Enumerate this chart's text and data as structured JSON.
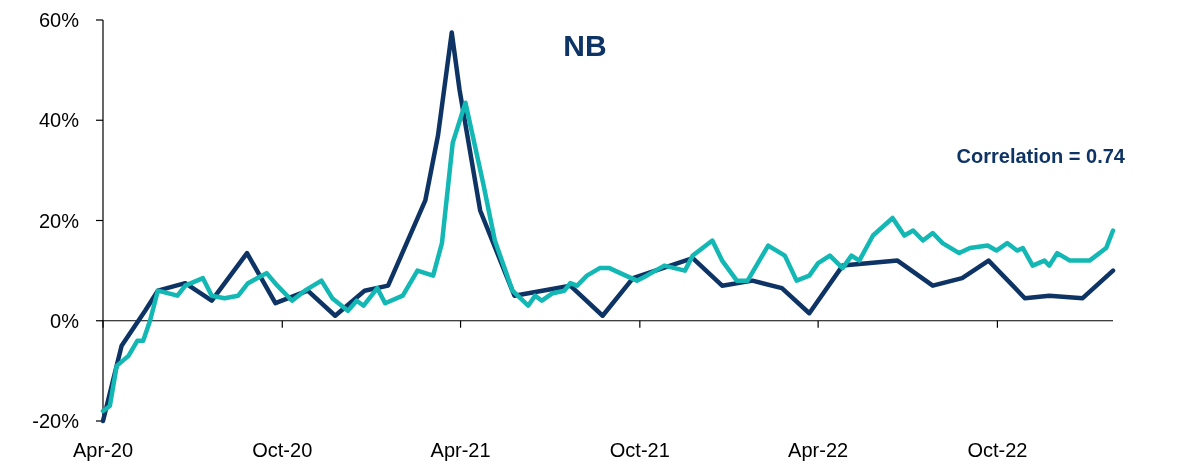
{
  "chart_data": {
    "type": "line",
    "title": "NB",
    "annotations": [
      "Correlation = 0.74"
    ],
    "xlim": [
      "2020-04-01",
      "2023-01-27"
    ],
    "xticks": [
      {
        "value": "2020-04-01",
        "label": "Apr-20"
      },
      {
        "value": "2020-10-01",
        "label": "Oct-20"
      },
      {
        "value": "2021-04-01",
        "label": "Apr-21"
      },
      {
        "value": "2021-10-01",
        "label": "Oct-21"
      },
      {
        "value": "2022-04-01",
        "label": "Apr-22"
      },
      {
        "value": "2022-10-01",
        "label": "Oct-22"
      }
    ],
    "ylim": [
      -20,
      60
    ],
    "yticks": [
      {
        "value": -20,
        "label": "-20%"
      },
      {
        "value": 0,
        "label": "0%"
      },
      {
        "value": 20,
        "label": "20%"
      },
      {
        "value": 40,
        "label": "40%"
      },
      {
        "value": 60,
        "label": "60%"
      }
    ],
    "marker": "none",
    "line_style": "solid",
    "series": [
      {
        "color": "#0e3465",
        "x": [
          "2020-04-01",
          "2020-04-20",
          "2020-05-14",
          "2020-05-27",
          "2020-06-24",
          "2020-07-21",
          "2020-08-26",
          "2020-09-24",
          "2020-10-27",
          "2020-11-24",
          "2020-12-24",
          "2021-01-17",
          "2021-02-24",
          "2021-03-09",
          "2021-03-23",
          "2021-03-31",
          "2021-04-21",
          "2021-05-26",
          "2021-07-22",
          "2021-08-24",
          "2021-09-24",
          "2021-11-24",
          "2021-12-24",
          "2022-01-24",
          "2022-02-23",
          "2022-03-23",
          "2022-04-26",
          "2022-06-21",
          "2022-07-27",
          "2022-08-26",
          "2022-09-22",
          "2022-10-29",
          "2022-11-23",
          "2022-12-27",
          "2023-01-27"
        ],
        "values": [
          -20,
          -5,
          2,
          6,
          7.5,
          4,
          13.5,
          3.5,
          6,
          1,
          6,
          7,
          24,
          37,
          57.5,
          46,
          22,
          5,
          7,
          1,
          8.5,
          12.5,
          7,
          8,
          6.5,
          1.5,
          11,
          12,
          7,
          8.5,
          12,
          4.5,
          5,
          4.5,
          10
        ]
      },
      {
        "color": "#13b8b4",
        "x": [
          "2020-04-01",
          "2020-04-08",
          "2020-04-15",
          "2020-04-27",
          "2020-05-06",
          "2020-05-12",
          "2020-05-19",
          "2020-05-27",
          "2020-06-16",
          "2020-06-24",
          "2020-07-12",
          "2020-07-21",
          "2020-08-03",
          "2020-08-17",
          "2020-08-27",
          "2020-09-15",
          "2020-09-26",
          "2020-10-11",
          "2020-10-24",
          "2020-11-10",
          "2020-11-21",
          "2020-12-07",
          "2020-12-16",
          "2020-12-23",
          "2021-01-06",
          "2021-01-14",
          "2021-02-01",
          "2021-02-16",
          "2021-03-04",
          "2021-03-13",
          "2021-03-24",
          "2021-04-06",
          "2021-04-24",
          "2021-05-06",
          "2021-05-24",
          "2021-06-09",
          "2021-06-16",
          "2021-06-23",
          "2021-07-04",
          "2021-07-16",
          "2021-07-22",
          "2021-07-29",
          "2021-08-08",
          "2021-08-21",
          "2021-08-31",
          "2021-09-11",
          "2021-09-28",
          "2021-10-08",
          "2021-10-26",
          "2021-11-16",
          "2021-11-24",
          "2021-12-14",
          "2021-12-24",
          "2022-01-08",
          "2022-01-19",
          "2022-01-28",
          "2022-02-09",
          "2022-02-26",
          "2022-03-10",
          "2022-03-23",
          "2022-04-01",
          "2022-04-13",
          "2022-04-26",
          "2022-05-05",
          "2022-05-13",
          "2022-05-27",
          "2022-06-16",
          "2022-06-28",
          "2022-07-07",
          "2022-07-17",
          "2022-07-27",
          "2022-08-06",
          "2022-08-23",
          "2022-09-03",
          "2022-09-21",
          "2022-09-30",
          "2022-10-11",
          "2022-10-21",
          "2022-10-27",
          "2022-11-06",
          "2022-11-18",
          "2022-11-23",
          "2022-12-01",
          "2022-12-14",
          "2023-01-03",
          "2023-01-20",
          "2023-01-27"
        ],
        "values": [
          -18,
          -17,
          -9,
          -7,
          -4,
          -4,
          0,
          6,
          5,
          7,
          8.5,
          5,
          4.5,
          5,
          7.5,
          9.5,
          7,
          4,
          6,
          8,
          4.5,
          2,
          4,
          3,
          6.5,
          3.5,
          5,
          10,
          9,
          15.5,
          35.5,
          43.5,
          27.5,
          16,
          6,
          3,
          5,
          4,
          5.5,
          6,
          7.5,
          7,
          9,
          10.5,
          10.5,
          9.5,
          8,
          9,
          11,
          10,
          13,
          16,
          12,
          8,
          8,
          11,
          15,
          13,
          8,
          9,
          11.5,
          13,
          10.5,
          13,
          12,
          17,
          20.5,
          17,
          18,
          16,
          17.5,
          15.5,
          13.5,
          14.5,
          15,
          14,
          15.5,
          14,
          14.5,
          11,
          12,
          11,
          13.5,
          12,
          12,
          14.5,
          18
        ]
      }
    ]
  }
}
